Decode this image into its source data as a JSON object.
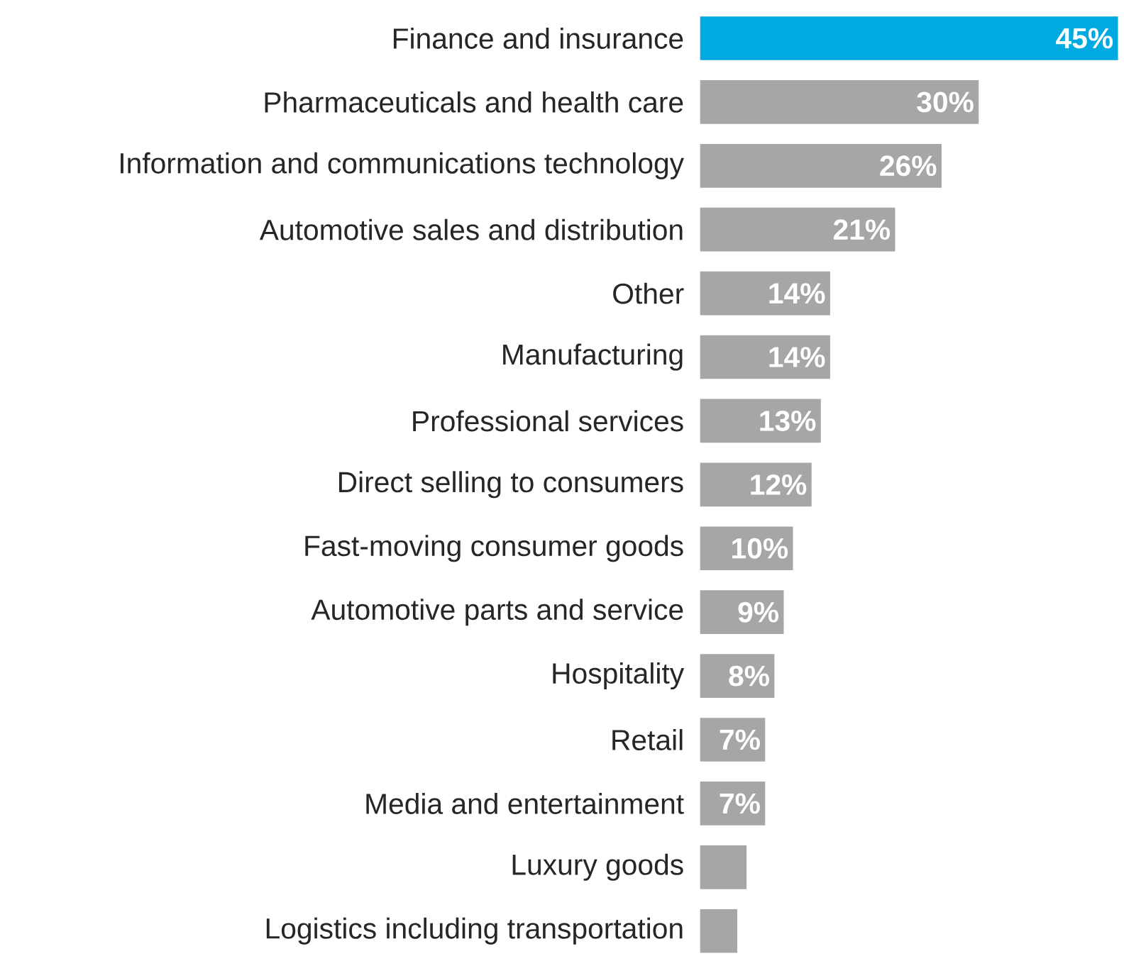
{
  "chart_data": {
    "type": "bar",
    "orientation": "horizontal",
    "categories": [
      "Finance and insurance",
      "Pharmaceuticals and health care",
      "Information and communications technology",
      "Automotive sales and distribution",
      "Other",
      "Manufacturing",
      "Professional services",
      "Direct selling to consumers",
      "Fast-moving consumer goods",
      "Automotive parts and service",
      "Hospitality",
      "Retail",
      "Media and entertainment",
      "Luxury goods",
      "Logistics including transportation"
    ],
    "values": [
      45,
      30,
      26,
      21,
      14,
      14,
      13,
      12,
      10,
      9,
      8,
      7,
      7,
      5,
      4
    ],
    "colors": [
      "#00a9e0",
      "#a6a6a6",
      "#a6a6a6",
      "#a6a6a6",
      "#a6a6a6",
      "#a6a6a6",
      "#a6a6a6",
      "#a6a6a6",
      "#a6a6a6",
      "#a6a6a6",
      "#a6a6a6",
      "#a6a6a6",
      "#a6a6a6",
      "#a6a6a6",
      "#a6a6a6"
    ],
    "value_labels": [
      "45%",
      "30%",
      "26%",
      "21%",
      "14%",
      "14%",
      "13%",
      "12%",
      "10%",
      "9%",
      "8%",
      "7%",
      "7%",
      null,
      null
    ]
  }
}
